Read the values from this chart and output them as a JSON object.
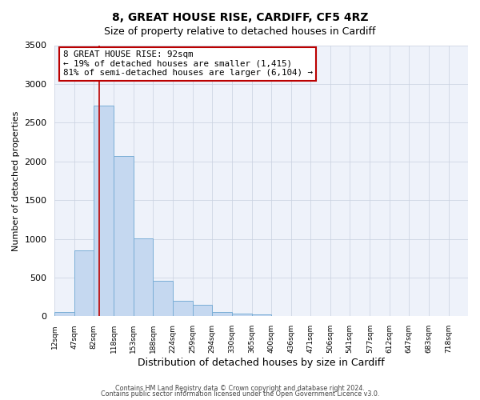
{
  "title": "8, GREAT HOUSE RISE, CARDIFF, CF5 4RZ",
  "subtitle": "Size of property relative to detached houses in Cardiff",
  "xlabel": "Distribution of detached houses by size in Cardiff",
  "ylabel": "Number of detached properties",
  "bar_color": "#c5d8f0",
  "bar_edge_color": "#7aaed6",
  "background_color": "#eef2fa",
  "grid_color": "#c8d0e0",
  "bin_edges": [
    12,
    47,
    82,
    118,
    153,
    188,
    224,
    259,
    294,
    330,
    365,
    400,
    436,
    471,
    506,
    541,
    577,
    612,
    647,
    683,
    718,
    753
  ],
  "bar_heights": [
    55,
    850,
    2720,
    2070,
    1010,
    455,
    205,
    145,
    55,
    35,
    20,
    8,
    3,
    0,
    0,
    0,
    0,
    0,
    0,
    0,
    0
  ],
  "property_size": 92,
  "vline_color": "#bb0000",
  "annotation_line1": "8 GREAT HOUSE RISE: 92sqm",
  "annotation_line2": "← 19% of detached houses are smaller (1,415)",
  "annotation_line3": "81% of semi-detached houses are larger (6,104) →",
  "annotation_box_color": "#bb0000",
  "ylim": [
    0,
    3500
  ],
  "yticks": [
    0,
    500,
    1000,
    1500,
    2000,
    2500,
    3000,
    3500
  ],
  "xtick_labels": [
    "12sqm",
    "47sqm",
    "82sqm",
    "118sqm",
    "153sqm",
    "188sqm",
    "224sqm",
    "259sqm",
    "294sqm",
    "330sqm",
    "365sqm",
    "400sqm",
    "436sqm",
    "471sqm",
    "506sqm",
    "541sqm",
    "577sqm",
    "612sqm",
    "647sqm",
    "683sqm",
    "718sqm"
  ],
  "footer_line1": "Contains HM Land Registry data © Crown copyright and database right 2024.",
  "footer_line2": "Contains public sector information licensed under the Open Government Licence v3.0."
}
